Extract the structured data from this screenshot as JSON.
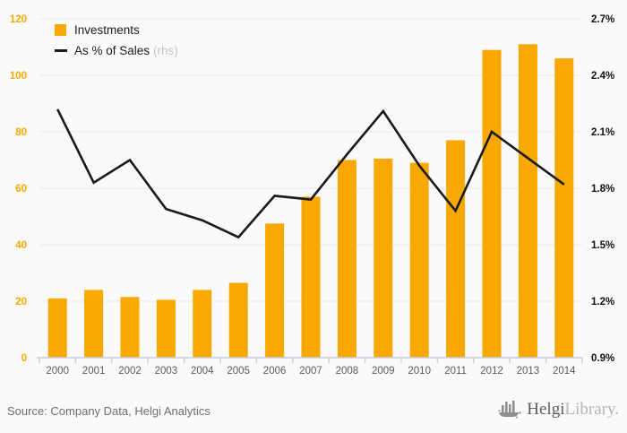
{
  "colors": {
    "background": "#fafafa",
    "accent_orange": "#F8A800",
    "line_black": "#1a1a1a",
    "grid": "#e9e9e9",
    "axis_blue_gray": "#c5cde0",
    "year_label": "#5a5a5a",
    "right_label": "#111111",
    "source_text": "#6e6e6e",
    "logo_gray": "#8f8f8f"
  },
  "legend": {
    "items": [
      {
        "label": "Investments",
        "swatch": "bar"
      },
      {
        "label": "As % of Sales",
        "suffix": "(rhs)",
        "swatch": "line"
      }
    ]
  },
  "chart_data": {
    "type": "bar",
    "subtype": "bar+line combo, dual axis",
    "categories": [
      "2000",
      "2001",
      "2002",
      "2003",
      "2004",
      "2005",
      "2006",
      "2007",
      "2008",
      "2009",
      "2010",
      "2011",
      "2012",
      "2013",
      "2014"
    ],
    "series": [
      {
        "name": "Investments",
        "type": "bar",
        "axis": "left",
        "color": "#F8A800",
        "values": [
          21,
          24,
          21.5,
          20.5,
          24,
          26.5,
          47.5,
          57,
          70,
          70.5,
          69,
          77,
          109,
          111,
          106
        ]
      },
      {
        "name": "As % of Sales",
        "type": "line",
        "axis": "right",
        "color": "#1a1a1a",
        "values": [
          2.22,
          1.83,
          1.95,
          1.69,
          1.63,
          1.54,
          1.76,
          1.74,
          1.98,
          2.21,
          1.92,
          1.68,
          2.1,
          1.96,
          1.82
        ]
      }
    ],
    "left_axis": {
      "min": 0,
      "max": 120,
      "ticks": [
        0,
        20,
        40,
        60,
        80,
        100,
        120
      ]
    },
    "right_axis": {
      "min": 0.9,
      "max": 2.7,
      "tick_labels": [
        "0.9%",
        "1.2%",
        "1.5%",
        "1.8%",
        "2.1%",
        "2.4%",
        "2.7%"
      ]
    },
    "grid": true,
    "legend_position": "top-left",
    "title": "",
    "xlabel": "",
    "ylabel": ""
  },
  "footer": {
    "source": "Source: Company Data, Helgi Analytics"
  },
  "logo": {
    "text_primary": "Helgi",
    "text_secondary": "Library."
  }
}
